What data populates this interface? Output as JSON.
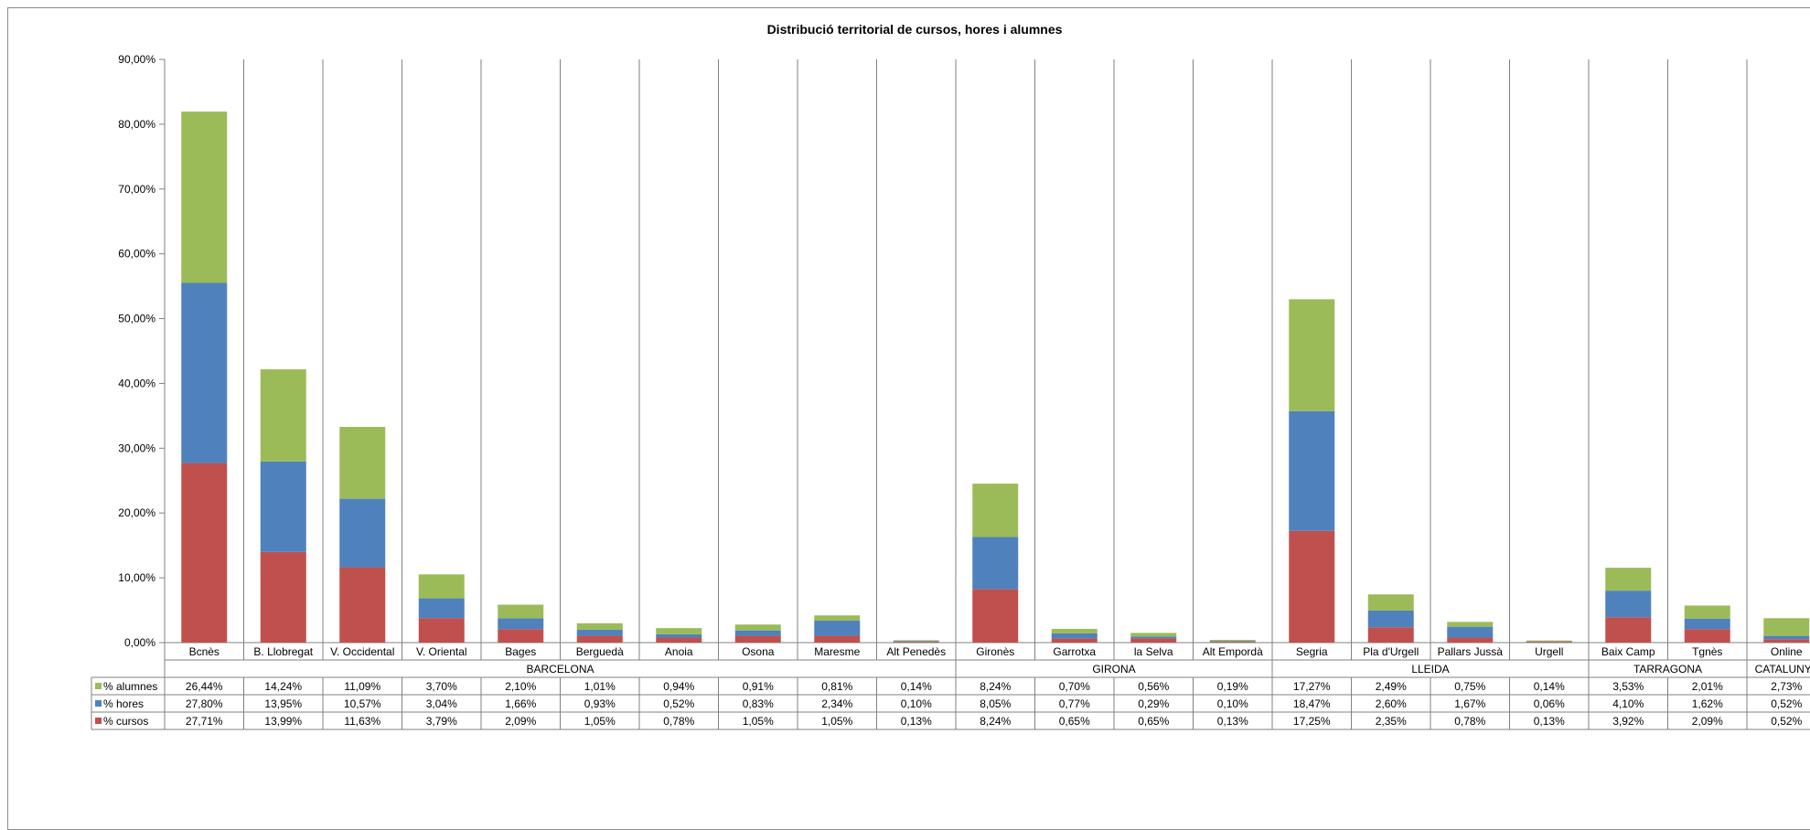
{
  "chart_data": {
    "type": "bar",
    "stacked": true,
    "title": "Distribució territorial de cursos, hores i alumnes",
    "xlabel": "",
    "ylabel": "",
    "ylim": [
      0,
      90
    ],
    "yticks": [
      "0,00%",
      "10,00%",
      "20,00%",
      "30,00%",
      "40,00%",
      "50,00%",
      "60,00%",
      "70,00%",
      "80,00%",
      "90,00%"
    ],
    "grid": "vertical category separators",
    "legend": "data-table",
    "categories": [
      "Bcnès",
      "B. Llobregat",
      "V. Occidental",
      "V. Oriental",
      "Bages",
      "Berguedà",
      "Anoia",
      "Osona",
      "Maresme",
      "Alt Penedès",
      "Gironès",
      "Garrotxa",
      "la Selva",
      "Alt Empordà",
      "Segria",
      "Pla d'Urgell",
      "Pallars Jussà",
      "Urgell",
      "Baix Camp",
      "Tgnès",
      "Online"
    ],
    "groups": [
      {
        "label": "BARCELONA",
        "start": 0,
        "end": 9
      },
      {
        "label": "GIRONA",
        "start": 10,
        "end": 13
      },
      {
        "label": "LLEIDA",
        "start": 14,
        "end": 17
      },
      {
        "label": "TARRAGONA",
        "start": 18,
        "end": 19
      },
      {
        "label": "CATALUNYA",
        "start": 20,
        "end": 20
      }
    ],
    "series": [
      {
        "name": "% alumnes",
        "color": "#9BBB59",
        "values": [
          26.44,
          14.24,
          11.09,
          3.7,
          2.1,
          1.01,
          0.94,
          0.91,
          0.81,
          0.14,
          8.24,
          0.7,
          0.56,
          0.19,
          17.27,
          2.49,
          0.75,
          0.14,
          3.53,
          2.01,
          2.73
        ],
        "labels": [
          "26,44%",
          "14,24%",
          "11,09%",
          "3,70%",
          "2,10%",
          "1,01%",
          "0,94%",
          "0,91%",
          "0,81%",
          "0,14%",
          "8,24%",
          "0,70%",
          "0,56%",
          "0,19%",
          "17,27%",
          "2,49%",
          "0,75%",
          "0,14%",
          "3,53%",
          "2,01%",
          "2,73%"
        ]
      },
      {
        "name": "% hores",
        "color": "#4F81BD",
        "values": [
          27.8,
          13.95,
          10.57,
          3.04,
          1.66,
          0.93,
          0.52,
          0.83,
          2.34,
          0.1,
          8.05,
          0.77,
          0.29,
          0.1,
          18.47,
          2.6,
          1.67,
          0.06,
          4.1,
          1.62,
          0.52
        ],
        "labels": [
          "27,80%",
          "13,95%",
          "10,57%",
          "3,04%",
          "1,66%",
          "0,93%",
          "0,52%",
          "0,83%",
          "2,34%",
          "0,10%",
          "8,05%",
          "0,77%",
          "0,29%",
          "0,10%",
          "18,47%",
          "2,60%",
          "1,67%",
          "0,06%",
          "4,10%",
          "1,62%",
          "0,52%"
        ]
      },
      {
        "name": "% cursos",
        "color": "#C0504D",
        "values": [
          27.71,
          13.99,
          11.63,
          3.79,
          2.09,
          1.05,
          0.78,
          1.05,
          1.05,
          0.13,
          8.24,
          0.65,
          0.65,
          0.13,
          17.25,
          2.35,
          0.78,
          0.13,
          3.92,
          2.09,
          0.52
        ],
        "labels": [
          "27,71%",
          "13,99%",
          "11,63%",
          "3,79%",
          "2,09%",
          "1,05%",
          "0,78%",
          "1,05%",
          "1,05%",
          "0,13%",
          "8,24%",
          "0,65%",
          "0,65%",
          "0,13%",
          "17,25%",
          "2,35%",
          "0,78%",
          "0,13%",
          "3,92%",
          "2,09%",
          "0,52%"
        ]
      }
    ]
  }
}
